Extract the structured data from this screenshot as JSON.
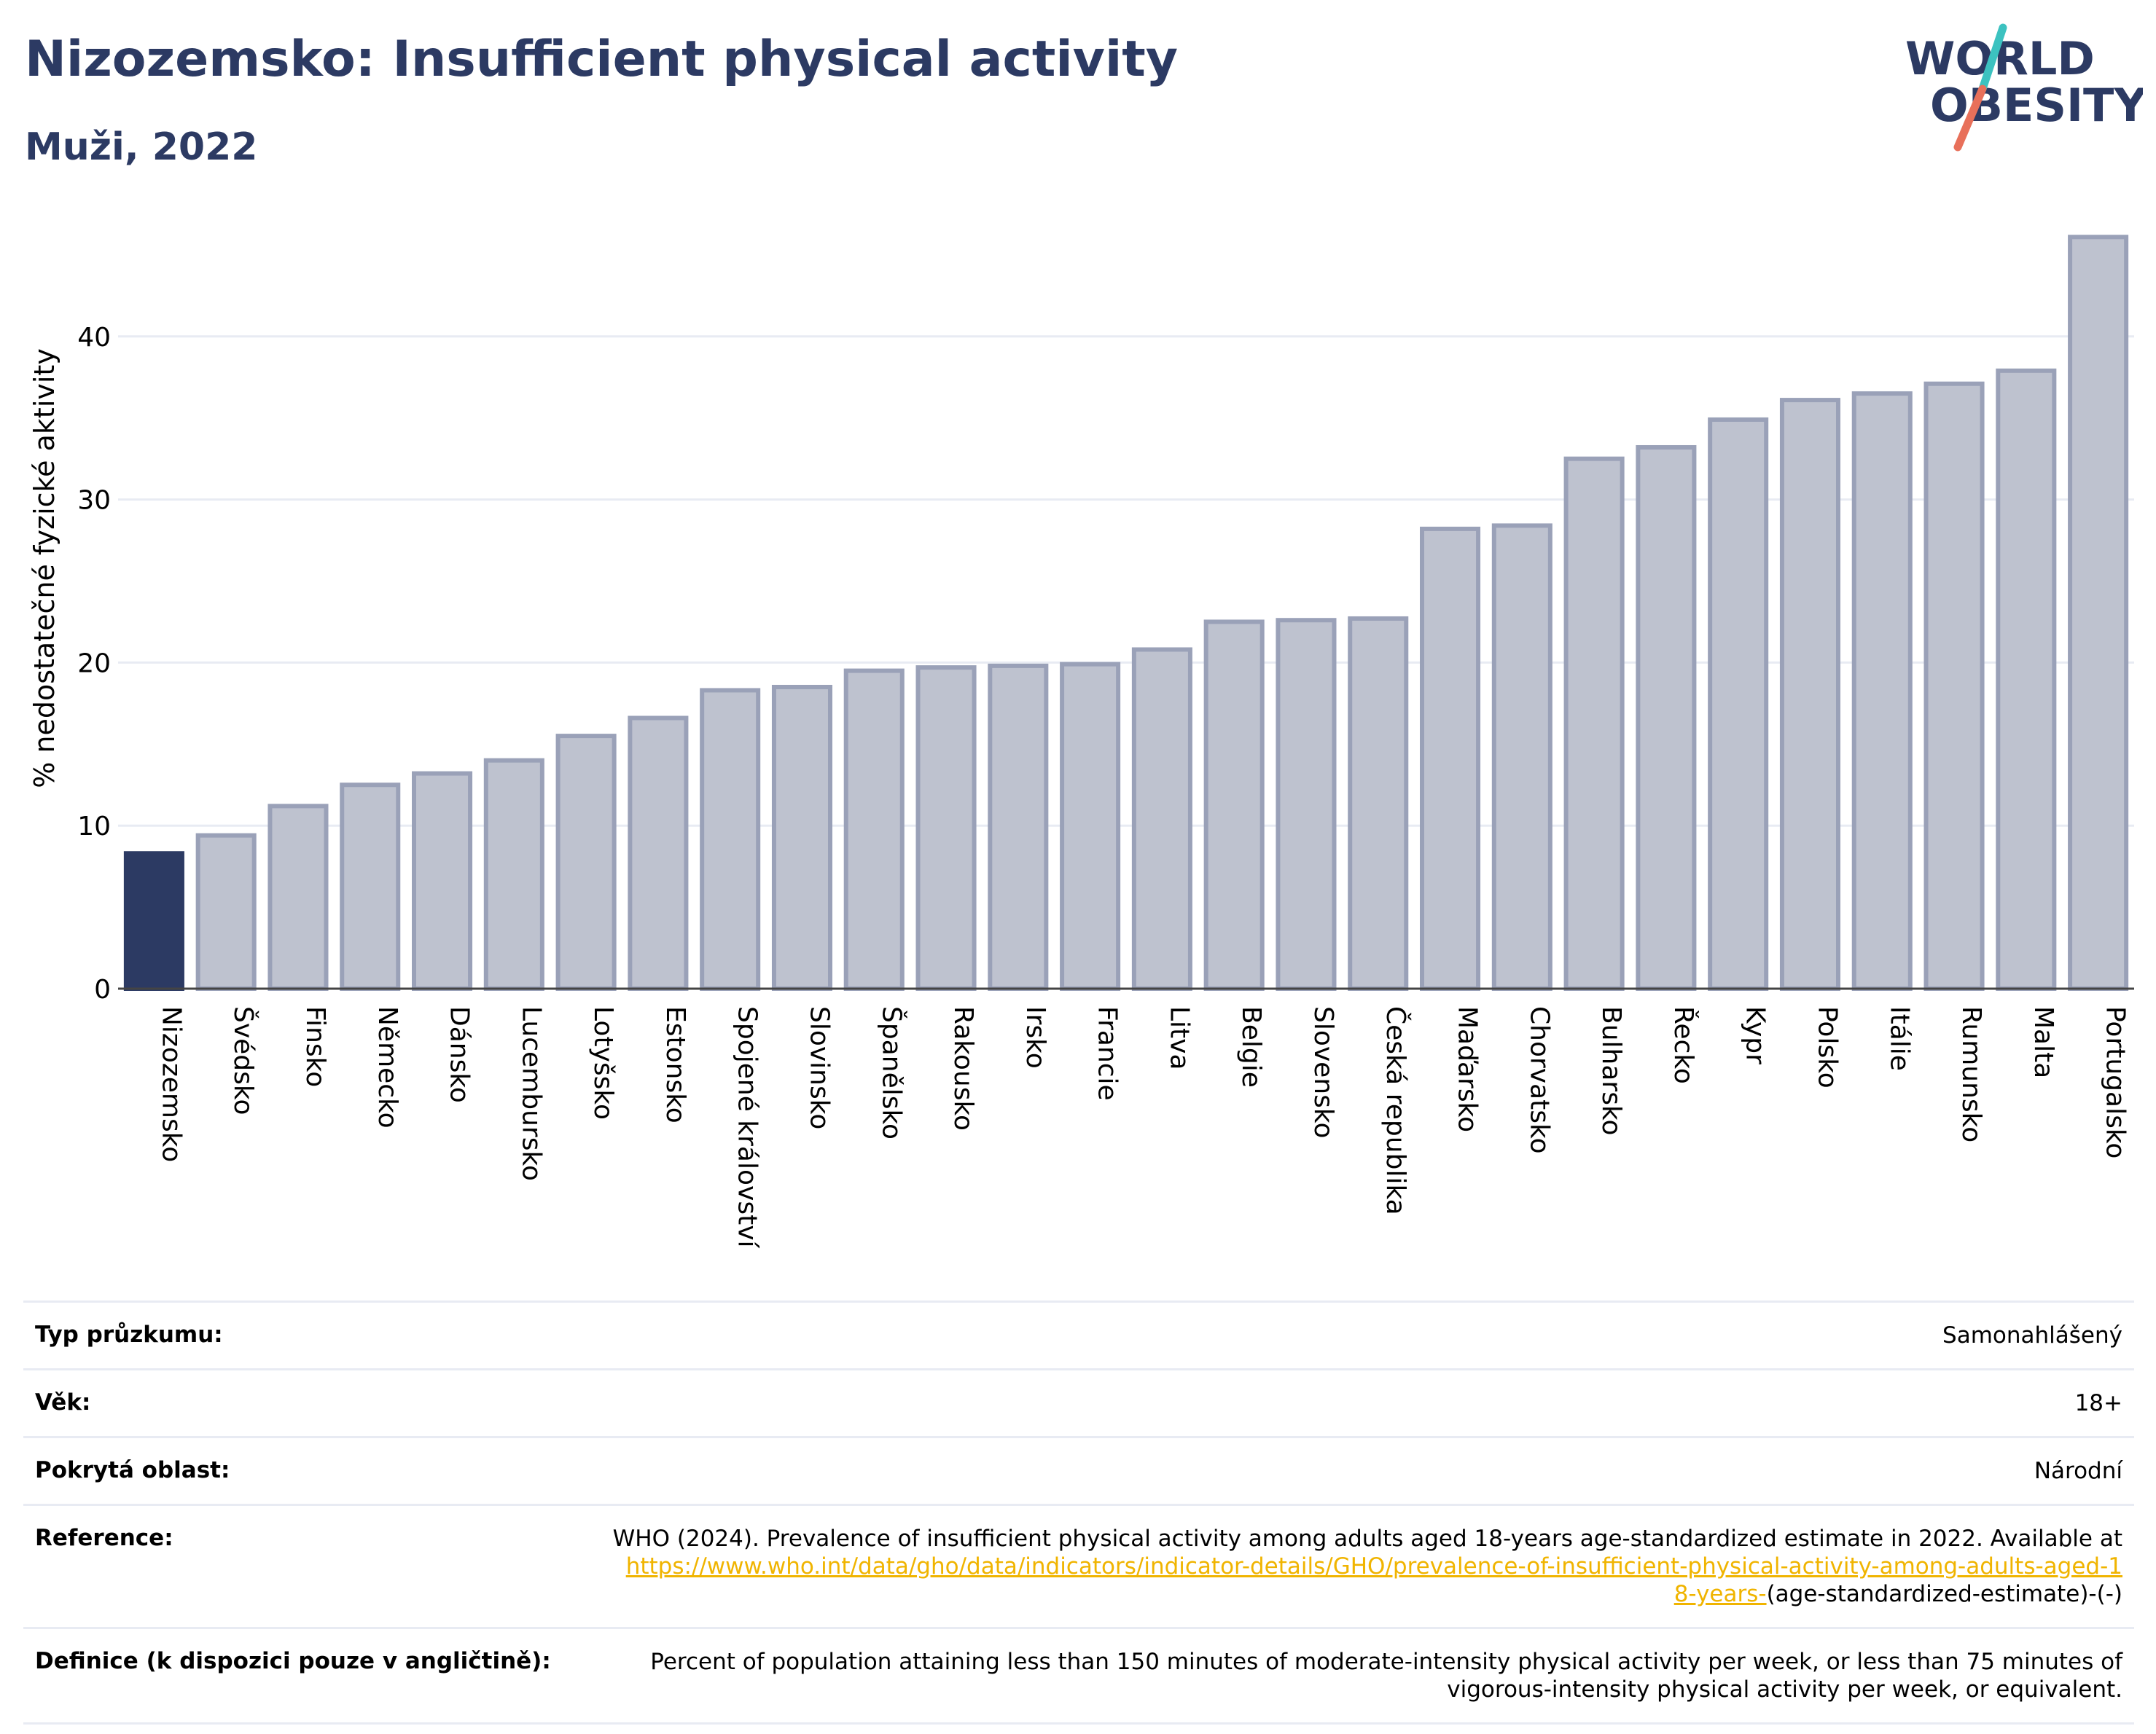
{
  "header": {
    "title": "Nizozemsko: Insufficient physical activity",
    "subtitle": "Muži, 2022"
  },
  "logo": {
    "line1": "WORLD",
    "line2": "OBESITY"
  },
  "colors": {
    "highlight": "#2c3a63",
    "bar_fill": "#bec2cf",
    "bar_stroke": "#9aa1b8",
    "grid": "#e8ebf3",
    "logo_text": "#2c3a63",
    "logo_teal": "#3cc2c0",
    "logo_coral": "#e8705a",
    "link": "#f0b400"
  },
  "chart_data": {
    "type": "bar",
    "ylabel": "% nedostatečné fyzické aktivity",
    "ylim": [
      0,
      47
    ],
    "yticks": [
      0,
      10,
      20,
      30,
      40
    ],
    "grid": true,
    "highlight_category": "Nizozemsko",
    "categories": [
      "Nizozemsko",
      "Švédsko",
      "Finsko",
      "Německo",
      "Dánsko",
      "Lucembursko",
      "Lotyšsko",
      "Estonsko",
      "Spojené království",
      "Slovinsko",
      "Španělsko",
      "Rakousko",
      "Irsko",
      "Francie",
      "Litva",
      "Belgie",
      "Slovensko",
      "Česká republika",
      "Maďarsko",
      "Chorvatsko",
      "Bulharsko",
      "Řecko",
      "Kypr",
      "Polsko",
      "Itálie",
      "Rumunsko",
      "Malta",
      "Portugalsko"
    ],
    "values": [
      8.3,
      9.4,
      11.2,
      12.5,
      13.2,
      14.0,
      15.5,
      16.6,
      18.3,
      18.5,
      19.5,
      19.7,
      19.8,
      19.9,
      20.8,
      22.5,
      22.6,
      22.7,
      28.2,
      28.4,
      32.5,
      33.2,
      34.9,
      36.1,
      36.5,
      37.1,
      37.9,
      46.1
    ]
  },
  "info": {
    "survey_type_label": "Typ průzkumu:",
    "survey_type_value": "Samonahlášený",
    "age_label": "Věk:",
    "age_value": "18+",
    "coverage_label": "Pokrytá oblast:",
    "coverage_value": "Národní",
    "reference_label": "Reference:",
    "reference_text": "WHO (2024). Prevalence of insufficient physical activity among adults aged 18-years age-standardized estimate in 2022. Available at",
    "reference_link": "https://www.who.int/data/gho/data/indicators/indicator-details/GHO/prevalence-of-insufficient-physical-activity-among-adults-aged-18-years-",
    "reference_suffix": "(age-standardized-estimate)-(-)",
    "definition_label": "Definice (k dispozici pouze v angličtině):",
    "definition_value": "Percent of population attaining less than 150 minutes of moderate-intensity physical activity per week, or less than 75 minutes of vigorous-intensity physical activity per week, or equivalent."
  }
}
